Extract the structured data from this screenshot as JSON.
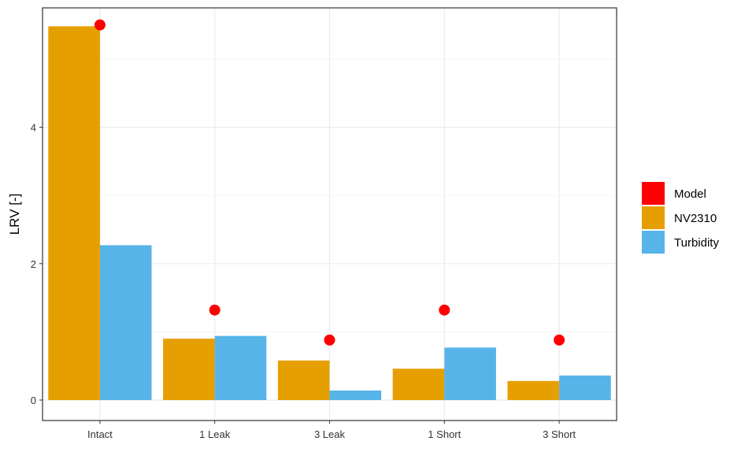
{
  "chart_data": {
    "type": "bar",
    "ylabel": "LRV [-]",
    "xlabel": "",
    "title": "",
    "categories": [
      "Intact",
      "1 Leak",
      "3 Leak",
      "1 Short",
      "3 Short"
    ],
    "ylim": [
      -0.3,
      5.75
    ],
    "yticks": [
      0,
      2,
      4
    ],
    "grid": true,
    "legend_position": "right",
    "series": [
      {
        "name": "NV2310",
        "kind": "bar",
        "color": "#E69F00",
        "values": [
          5.48,
          0.9,
          0.58,
          0.46,
          0.28
        ]
      },
      {
        "name": "Turbidity",
        "kind": "bar",
        "color": "#56B4E9",
        "values": [
          2.27,
          0.94,
          0.14,
          0.77,
          0.36
        ]
      },
      {
        "name": "Model",
        "kind": "point",
        "color": "#FF0000",
        "values": [
          5.5,
          1.32,
          0.88,
          1.32,
          0.88
        ]
      }
    ],
    "legend": [
      "Model",
      "NV2310",
      "Turbidity"
    ]
  }
}
